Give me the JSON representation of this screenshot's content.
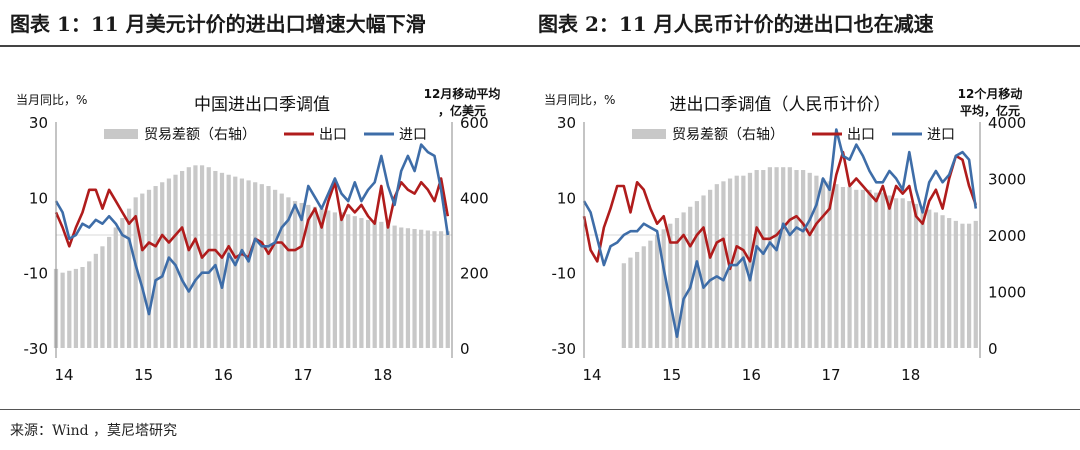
{
  "figures": [
    {
      "title": "图表 1：11 月美元计价的进出口增速大幅下滑"
    },
    {
      "title": "图表 2：11 月人民币计价的进出口也在减速"
    }
  ],
  "source": "来源：Wind ，莫尼塔研究",
  "colors": {
    "bars": "#c8c8c8",
    "export": "#b01c1c",
    "import": "#3e6da8"
  },
  "chart_data": [
    {
      "type": "line",
      "title": "中国进出口季调值",
      "ylabel_left": "当月同比，%",
      "ylabel_right": "12月移动平均，亿美元",
      "ylim_left": [
        -30,
        30
      ],
      "yticks_left": [
        "30",
        "10",
        "-10",
        "-30"
      ],
      "ylim_right": [
        0,
        600
      ],
      "yticks_right": [
        "600",
        "400",
        "200",
        "0"
      ],
      "xlim": [
        2014.0,
        2018.97
      ],
      "xticks": [
        "14",
        "15",
        "16",
        "17",
        "18"
      ],
      "grid": false,
      "legend_position": "top",
      "x": [
        2014.0,
        2014.083,
        2014.167,
        2014.25,
        2014.333,
        2014.417,
        2014.5,
        2014.583,
        2014.667,
        2014.75,
        2014.833,
        2014.917,
        2015.0,
        2015.083,
        2015.167,
        2015.25,
        2015.333,
        2015.417,
        2015.5,
        2015.583,
        2015.667,
        2015.75,
        2015.833,
        2015.917,
        2016.0,
        2016.083,
        2016.167,
        2016.25,
        2016.333,
        2016.417,
        2016.5,
        2016.583,
        2016.667,
        2016.75,
        2016.833,
        2016.917,
        2017.0,
        2017.083,
        2017.167,
        2017.25,
        2017.333,
        2017.417,
        2017.5,
        2017.583,
        2017.667,
        2017.75,
        2017.833,
        2017.917,
        2018.0,
        2018.083,
        2018.167,
        2018.25,
        2018.333,
        2018.417,
        2018.5,
        2018.583,
        2018.667,
        2018.75,
        2018.833,
        2018.917
      ],
      "series": [
        {
          "name": "贸易差额（右轴）",
          "type": "bar",
          "axis": "right",
          "values": [
            210,
            200,
            205,
            210,
            215,
            230,
            250,
            270,
            295,
            320,
            345,
            370,
            400,
            410,
            420,
            430,
            440,
            450,
            460,
            470,
            480,
            485,
            485,
            480,
            470,
            465,
            460,
            455,
            450,
            445,
            440,
            435,
            430,
            420,
            410,
            400,
            390,
            385,
            380,
            375,
            370,
            365,
            360,
            360,
            355,
            350,
            345,
            340,
            340,
            335,
            330,
            325,
            320,
            318,
            316,
            314,
            312,
            310,
            310,
            310
          ]
        },
        {
          "name": "出口",
          "type": "line",
          "axis": "left",
          "values": [
            6,
            2,
            -3,
            2,
            6,
            12,
            12,
            7,
            12,
            9,
            6,
            3,
            5,
            -4,
            -2,
            -3,
            0,
            -2,
            0,
            2,
            -4,
            -1,
            -6,
            -4,
            -4,
            -6,
            -3,
            -6,
            -5,
            -6,
            -1,
            -2,
            -5,
            -2,
            -2,
            -4,
            -4,
            -3,
            4,
            7,
            2,
            9,
            14,
            4,
            8,
            6,
            8,
            5,
            3,
            13,
            2,
            10,
            14,
            12,
            11,
            14,
            12,
            9,
            15,
            5
          ]
        },
        {
          "name": "进口",
          "type": "line",
          "axis": "left",
          "values": [
            9,
            6,
            -1,
            0,
            3,
            2,
            4,
            3,
            5,
            3,
            0,
            -1,
            -8,
            -14,
            -21,
            -12,
            -11,
            -6,
            -8,
            -12,
            -15,
            -12,
            -10,
            -10,
            -8,
            -14,
            -5,
            -8,
            -4,
            -7,
            -1,
            -3,
            -3,
            -2,
            2,
            4,
            8,
            4,
            13,
            10,
            7,
            11,
            15,
            11,
            9,
            14,
            9,
            12,
            14,
            21,
            13,
            8,
            17,
            21,
            17,
            24,
            22,
            21,
            12,
            0
          ]
        }
      ]
    },
    {
      "type": "line",
      "title": "进出口季调值（人民币计价）",
      "ylabel_left": "当月同比，%",
      "ylabel_right": "12个月移动平均，亿元",
      "ylim_left": [
        -30,
        30
      ],
      "yticks_left": [
        "30",
        "10",
        "-10",
        "-30"
      ],
      "ylim_right": [
        0,
        4000
      ],
      "yticks_right": [
        "4000",
        "3000",
        "2000",
        "1000",
        "0"
      ],
      "xlim": [
        2014.0,
        2018.97
      ],
      "xticks": [
        "14",
        "15",
        "16",
        "17",
        "18"
      ],
      "grid": false,
      "legend_position": "top",
      "x": [
        2014.0,
        2014.083,
        2014.167,
        2014.25,
        2014.333,
        2014.417,
        2014.5,
        2014.583,
        2014.667,
        2014.75,
        2014.833,
        2014.917,
        2015.0,
        2015.083,
        2015.167,
        2015.25,
        2015.333,
        2015.417,
        2015.5,
        2015.583,
        2015.667,
        2015.75,
        2015.833,
        2015.917,
        2016.0,
        2016.083,
        2016.167,
        2016.25,
        2016.333,
        2016.417,
        2016.5,
        2016.583,
        2016.667,
        2016.75,
        2016.833,
        2016.917,
        2017.0,
        2017.083,
        2017.167,
        2017.25,
        2017.333,
        2017.417,
        2017.5,
        2017.583,
        2017.667,
        2017.75,
        2017.833,
        2017.917,
        2018.0,
        2018.083,
        2018.167,
        2018.25,
        2018.333,
        2018.417,
        2018.5,
        2018.583,
        2018.667,
        2018.75,
        2018.833,
        2018.917
      ],
      "series": [
        {
          "name": "贸易差额（右轴）",
          "type": "bar",
          "axis": "right",
          "values": [
            null,
            null,
            null,
            null,
            null,
            null,
            1500,
            1600,
            1700,
            1800,
            1900,
            2000,
            2100,
            2200,
            2300,
            2400,
            2500,
            2600,
            2700,
            2800,
            2900,
            2950,
            3000,
            3050,
            3050,
            3100,
            3150,
            3150,
            3200,
            3200,
            3200,
            3200,
            3150,
            3150,
            3100,
            3050,
            3000,
            2950,
            2900,
            2850,
            2850,
            2800,
            2800,
            2800,
            2750,
            2750,
            2700,
            2650,
            2650,
            2600,
            2550,
            2500,
            2450,
            2400,
            2350,
            2300,
            2250,
            2200,
            2200,
            2250
          ]
        },
        {
          "name": "出口",
          "type": "line",
          "axis": "left",
          "values": [
            5,
            -4,
            -7,
            2,
            7,
            13,
            13,
            6,
            14,
            12,
            7,
            3,
            5,
            -2,
            -2,
            0,
            -3,
            0,
            2,
            -6,
            -2,
            -1,
            -9,
            -3,
            -4,
            -7,
            2,
            -1,
            -1,
            0,
            2,
            4,
            5,
            3,
            0,
            3,
            5,
            7,
            16,
            22,
            13,
            15,
            13,
            11,
            9,
            13,
            7,
            13,
            11,
            13,
            5,
            3,
            9,
            12,
            7,
            15,
            21,
            20,
            13,
            8
          ]
        },
        {
          "name": "进口",
          "type": "line",
          "axis": "left",
          "values": [
            9,
            6,
            -1,
            -8,
            -3,
            -2,
            0,
            1,
            1,
            3,
            2,
            1,
            -9,
            -18,
            -27,
            -17,
            -14,
            -7,
            -14,
            -12,
            -11,
            -12,
            -8,
            -8,
            -6,
            -12,
            -3,
            -5,
            -2,
            -4,
            3,
            0,
            2,
            1,
            4,
            8,
            15,
            12,
            28,
            21,
            20,
            24,
            21,
            17,
            14,
            14,
            17,
            15,
            12,
            22,
            12,
            6,
            14,
            17,
            14,
            16,
            21,
            22,
            20,
            7
          ]
        }
      ]
    }
  ]
}
